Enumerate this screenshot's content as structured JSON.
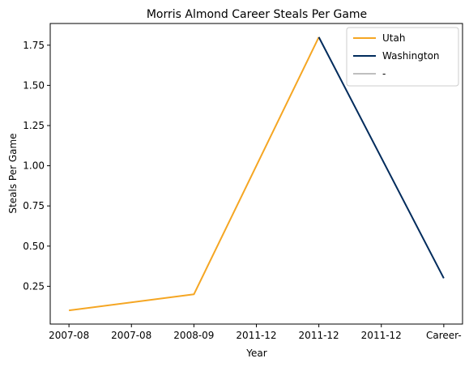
{
  "chart_data": {
    "type": "line",
    "title": "Morris Almond Career Steals Per Game",
    "xlabel": "Year",
    "ylabel": "Steals Per Game",
    "categories": [
      "2007-08",
      "2007-08",
      "2008-09",
      "2011-12",
      "2011-12",
      "2011-12",
      "Career-"
    ],
    "yticks": [
      0.25,
      0.5,
      0.75,
      1.0,
      1.25,
      1.5,
      1.75
    ],
    "ytick_labels": [
      "0.25",
      "0.50",
      "0.75",
      "1.00",
      "1.25",
      "1.50",
      "1.75"
    ],
    "ylim": [
      0.015,
      1.885
    ],
    "legend_position": "top-right",
    "grid": false,
    "series": [
      {
        "name": "Utah",
        "color": "#F5A623",
        "points": [
          [
            0,
            0.1
          ],
          [
            2,
            0.2
          ],
          [
            4,
            1.8
          ]
        ]
      },
      {
        "name": "Washington",
        "color": "#002B5C",
        "points": [
          [
            4,
            1.8
          ],
          [
            6,
            0.3
          ]
        ]
      },
      {
        "name": "-",
        "color": "#BFBFBF",
        "points": []
      }
    ]
  }
}
